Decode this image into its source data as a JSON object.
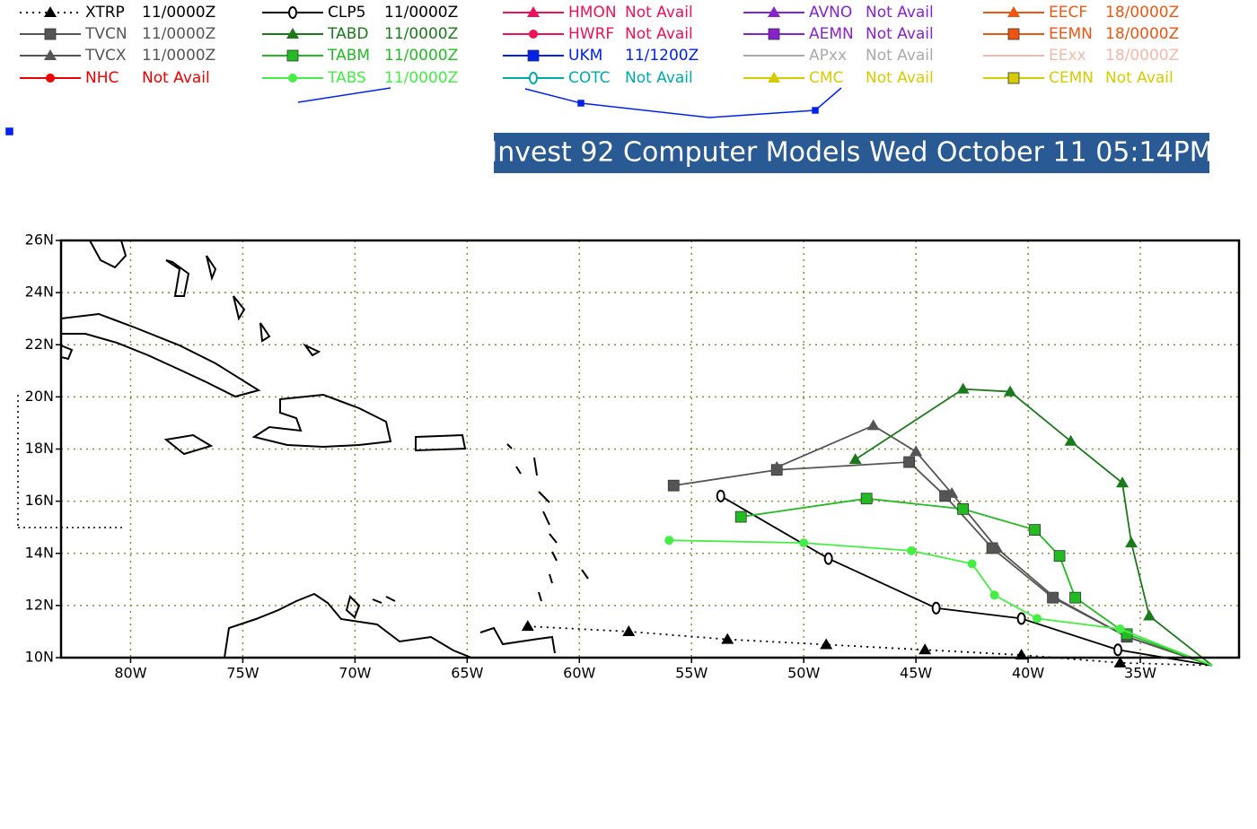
{
  "map": {
    "title": "- Invest 92 Computer Models Wed October 11 05:14PM -",
    "xlim": [
      -83.1,
      -30.6
    ],
    "ylim": [
      10,
      26
    ],
    "xticks": [
      {
        "value": -80,
        "label": "80W"
      },
      {
        "value": -75,
        "label": "75W"
      },
      {
        "value": -70,
        "label": "70W"
      },
      {
        "value": -65,
        "label": "65W"
      },
      {
        "value": -60,
        "label": "60W"
      },
      {
        "value": -55,
        "label": "55W"
      },
      {
        "value": -50,
        "label": "50W"
      },
      {
        "value": -45,
        "label": "45W"
      },
      {
        "value": -40,
        "label": "40W"
      },
      {
        "value": -35,
        "label": "35W"
      }
    ],
    "yticks": [
      {
        "value": 10,
        "label": "10N"
      },
      {
        "value": 12,
        "label": "12N"
      },
      {
        "value": 14,
        "label": "14N"
      },
      {
        "value": 16,
        "label": "16N"
      },
      {
        "value": 18,
        "label": "18N"
      },
      {
        "value": 20,
        "label": "20N"
      },
      {
        "value": 22,
        "label": "22N"
      },
      {
        "value": 24,
        "label": "24N"
      },
      {
        "value": 26,
        "label": "26N"
      }
    ],
    "grid": true,
    "models": [
      {
        "name": "XTRP",
        "status": "11/0000Z",
        "color": "#000000",
        "style": "dotted",
        "marker": "triangle",
        "lon": [
          -62.3,
          -57.8,
          -53.4,
          -49.0,
          -44.6,
          -40.3,
          -35.9,
          -31.8
        ],
        "lat": [
          11.2,
          11.0,
          10.7,
          10.5,
          10.3,
          10.1,
          9.8,
          9.7
        ]
      },
      {
        "name": "TVCN",
        "status": "11/0000Z",
        "color": "#555555",
        "style": "solid",
        "marker": "square",
        "lon": [
          -55.8,
          -51.2,
          -45.3,
          -43.7,
          -41.6,
          -38.9,
          -35.6,
          -31.8
        ],
        "lat": [
          16.6,
          17.2,
          17.5,
          16.2,
          14.2,
          12.3,
          10.8,
          9.7
        ]
      },
      {
        "name": "TVCX",
        "status": "11/0000Z",
        "color": "#555555",
        "style": "solid",
        "marker": "triangle",
        "lon": [
          -51.2,
          -46.9,
          -45.0,
          -43.4,
          -41.4,
          -38.8,
          -35.6,
          -31.8
        ],
        "lat": [
          17.3,
          18.9,
          17.9,
          16.3,
          14.2,
          12.3,
          10.8,
          9.7
        ]
      },
      {
        "name": "NHC",
        "status": "Not Avail",
        "color": "#ee0000",
        "style": "solid",
        "marker": "circle"
      },
      {
        "name": "CLP5",
        "status": "11/0000Z",
        "color": "#000000",
        "style": "solid",
        "marker": "ring",
        "lon": [
          -53.7,
          -48.9,
          -44.1,
          -40.3,
          -36.0,
          -31.8
        ],
        "lat": [
          16.2,
          13.8,
          11.9,
          11.5,
          10.3,
          9.7
        ]
      },
      {
        "name": "TABD",
        "status": "11/0000Z",
        "color": "#1a7a1a",
        "style": "solid",
        "marker": "triangle",
        "lon": [
          -47.7,
          -42.9,
          -40.8,
          -38.1,
          -35.8,
          -35.4,
          -34.6,
          -31.8
        ],
        "lat": [
          17.6,
          20.3,
          20.2,
          18.3,
          16.7,
          14.4,
          11.6,
          9.7
        ]
      },
      {
        "name": "TABM",
        "status": "11/0000Z",
        "color": "#22bb22",
        "style": "solid",
        "marker": "square",
        "lon": [
          -52.8,
          -47.2,
          -42.9,
          -39.7,
          -38.6,
          -37.9,
          -35.6,
          -31.8
        ],
        "lat": [
          15.4,
          16.1,
          15.7,
          14.9,
          13.9,
          12.3,
          10.9,
          9.7
        ]
      },
      {
        "name": "TABS",
        "status": "11/0000Z",
        "color": "#44ee44",
        "style": "solid",
        "marker": "circle",
        "lon": [
          -56.0,
          -50.0,
          -45.2,
          -42.5,
          -41.5,
          -39.6,
          -35.9,
          -31.8
        ],
        "lat": [
          14.5,
          14.4,
          14.1,
          13.6,
          12.4,
          11.5,
          11.1,
          9.7
        ]
      },
      {
        "name": "HMON",
        "status": "Not Avail",
        "color": "#ee1155",
        "style": "solid",
        "marker": "triangle"
      },
      {
        "name": "HWRF",
        "status": "Not Avail",
        "color": "#ee1155",
        "style": "solid",
        "marker": "circle"
      },
      {
        "name": "UKM",
        "status": "11/1200Z",
        "color": "#0022ee",
        "style": "solid",
        "marker": "square"
      },
      {
        "name": "COTC",
        "status": "Not Avail",
        "color": "#00aaaa",
        "style": "solid",
        "marker": "ring"
      },
      {
        "name": "AVNO",
        "status": "Not Avail",
        "color": "#8822cc",
        "style": "solid",
        "marker": "triangle"
      },
      {
        "name": "AEMN",
        "status": "Not Avail",
        "color": "#8822cc",
        "style": "solid",
        "marker": "square"
      },
      {
        "name": "APxx",
        "status": "Not Avail",
        "color": "#aaaaaa",
        "style": "solid",
        "marker": "none"
      },
      {
        "name": "CMC",
        "status": "Not Avail",
        "color": "#d4cc00",
        "style": "solid",
        "marker": "triangle"
      },
      {
        "name": "EECF",
        "status": "18/0000Z",
        "color": "#ee5511",
        "style": "solid",
        "marker": "triangle"
      },
      {
        "name": "EEMN",
        "status": "18/0000Z",
        "color": "#ee5511",
        "style": "solid",
        "marker": "square"
      },
      {
        "name": "EExx",
        "status": "18/0000Z",
        "color": "#f4b8a8",
        "style": "solid",
        "marker": "none"
      },
      {
        "name": "CEMN",
        "status": "Not Avail",
        "color": "#d4cc00",
        "style": "solid",
        "marker": "square"
      }
    ]
  }
}
